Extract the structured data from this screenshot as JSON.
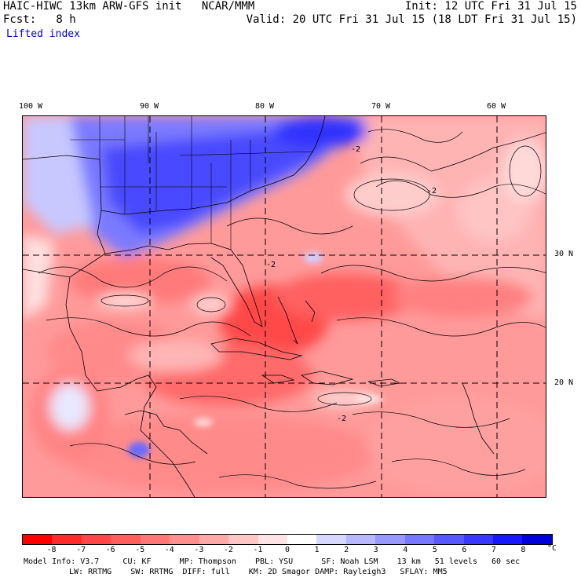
{
  "header": {
    "line1_left": "HAIC-HIWC 13km ARW-GFS init   NCAR/MMM",
    "line1_right": "Init: 12 UTC Fri 31 Jul 15",
    "line2_left": "Fcst:   8 h",
    "line2_right": "Valid: 20 UTC Fri 31 Jul 15 (18 LDT Fri 31 Jul 15)",
    "field": "Lifted index"
  },
  "map": {
    "lon_labels": [
      "100 W",
      "90 W",
      "80 W",
      "70 W",
      "60 W"
    ],
    "lat_labels": [
      "30 N",
      "20 N"
    ],
    "contour_labels": [
      "-2",
      "-2",
      "-2",
      "-2"
    ]
  },
  "colorbar": {
    "labels": [
      "-8",
      "-7",
      "-6",
      "-5",
      "-4",
      "-3",
      "-2",
      "-1",
      "0",
      "1",
      "2",
      "3",
      "4",
      "5",
      "6",
      "7",
      "8"
    ],
    "unit": "°C",
    "colors": [
      "#ff0000",
      "#ff2a2a",
      "#ff4646",
      "#ff5e5e",
      "#ff7676",
      "#ff8e8e",
      "#ffa8a8",
      "#ffc6c6",
      "#ffe4e4",
      "#ffffff",
      "#d8d8ff",
      "#b8b8ff",
      "#9898ff",
      "#7878ff",
      "#5858ff",
      "#3838ff",
      "#1818ff",
      "#0000dd"
    ]
  },
  "model_info": {
    "line1": "Model Info: V3.7     CU: KF      MP: Thompson    PBL: YSU      SF: Noah LSM    13 km   51 levels   60 sec",
    "line2": "LW: RRTMG    SW: RRTMG  DIFF: full    KM: 2D Smagor DAMP: Rayleigh3   SFLAY: MM5"
  }
}
